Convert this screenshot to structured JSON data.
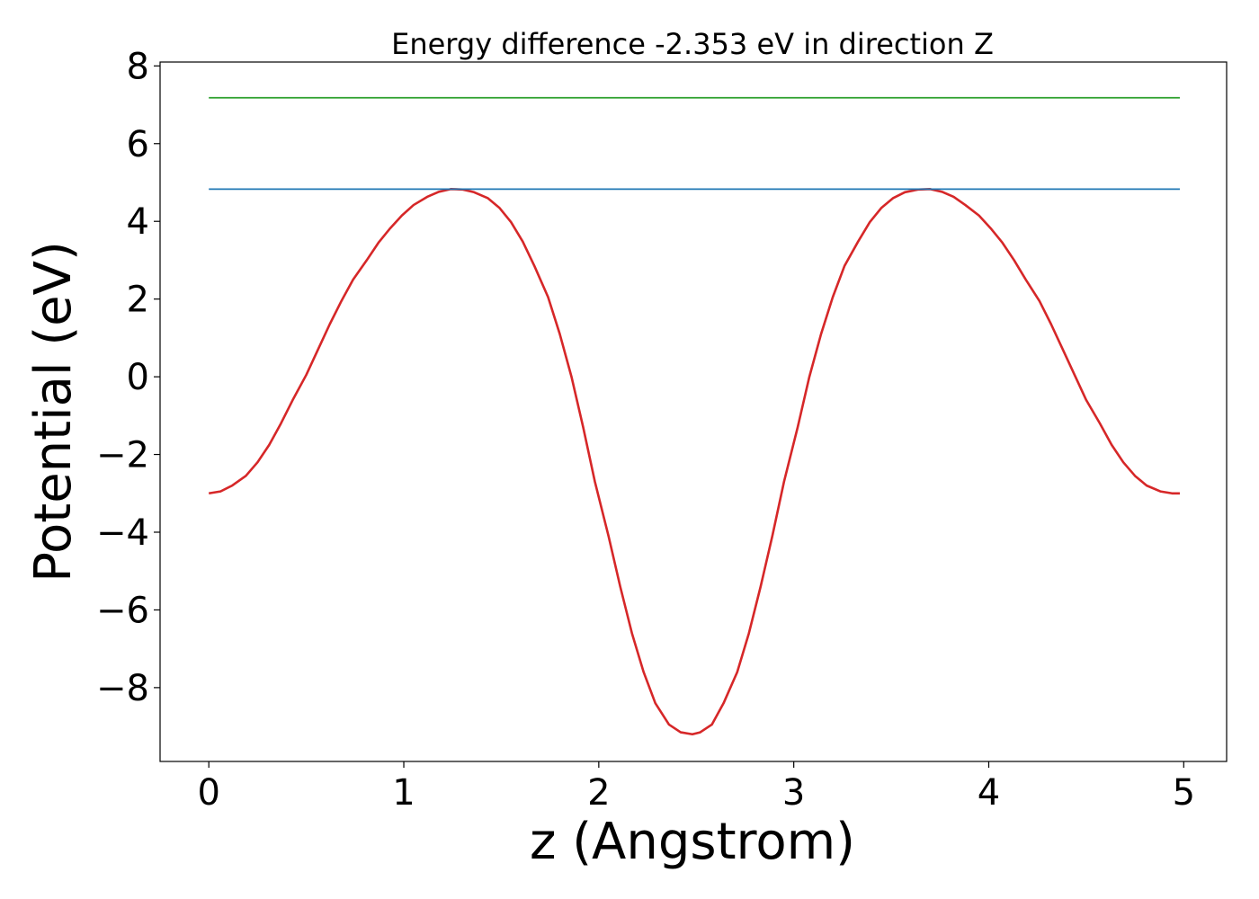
{
  "chart_data": {
    "type": "line",
    "title": "Energy difference -2.353 eV in direction Z",
    "xlabel": "z (Angstrom)",
    "ylabel": "Potential (eV)",
    "xlim": [
      -0.25,
      5.22
    ],
    "ylim": [
      -9.9,
      8.1
    ],
    "xticks": [
      0,
      1,
      2,
      3,
      4,
      5
    ],
    "yticks": [
      8,
      6,
      4,
      2,
      0,
      -2,
      -4,
      -6,
      -8
    ],
    "xtick_labels": [
      "0",
      "1",
      "2",
      "3",
      "4",
      "5"
    ],
    "ytick_labels": [
      "8",
      "6",
      "4",
      "2",
      "0",
      "−2",
      "−4",
      "−6",
      "−8"
    ],
    "grid": false,
    "legend": "none",
    "series": [
      {
        "color": "#d62728",
        "style": "curve",
        "x": [
          0.0,
          0.06,
          0.12,
          0.19,
          0.25,
          0.31,
          0.37,
          0.43,
          0.5,
          0.56,
          0.62,
          0.68,
          0.74,
          0.81,
          0.87,
          0.93,
          0.99,
          1.05,
          1.12,
          1.18,
          1.24,
          1.3,
          1.36,
          1.43,
          1.49,
          1.55,
          1.61,
          1.67,
          1.74,
          1.8,
          1.86,
          1.92,
          1.98,
          2.05,
          2.11,
          2.17,
          2.23,
          2.29,
          2.36,
          2.42,
          2.48,
          2.52,
          2.58,
          2.64,
          2.71,
          2.77,
          2.83,
          2.89,
          2.95,
          3.02,
          3.08,
          3.14,
          3.2,
          3.26,
          3.33,
          3.39,
          3.45,
          3.51,
          3.57,
          3.64,
          3.7,
          3.76,
          3.82,
          3.88,
          3.95,
          4.01,
          4.07,
          4.13,
          4.19,
          4.26,
          4.32,
          4.38,
          4.44,
          4.5,
          4.57,
          4.63,
          4.69,
          4.75,
          4.81,
          4.88,
          4.94,
          4.98
        ],
        "y": [
          -3.0,
          -2.95,
          -2.8,
          -2.55,
          -2.2,
          -1.75,
          -1.2,
          -0.6,
          0.05,
          0.7,
          1.35,
          1.95,
          2.5,
          3.0,
          3.45,
          3.82,
          4.15,
          4.42,
          4.63,
          4.76,
          4.83,
          4.82,
          4.75,
          4.6,
          4.35,
          3.98,
          3.48,
          2.85,
          2.05,
          1.1,
          0.0,
          -1.3,
          -2.7,
          -4.1,
          -5.4,
          -6.6,
          -7.6,
          -8.4,
          -8.95,
          -9.15,
          -9.2,
          -9.15,
          -8.95,
          -8.4,
          -7.6,
          -6.6,
          -5.4,
          -4.1,
          -2.7,
          -1.3,
          0.0,
          1.1,
          2.05,
          2.85,
          3.48,
          3.98,
          4.35,
          4.6,
          4.75,
          4.82,
          4.83,
          4.76,
          4.63,
          4.42,
          4.15,
          3.82,
          3.45,
          3.0,
          2.5,
          1.95,
          1.35,
          0.7,
          0.05,
          -0.6,
          -1.2,
          -1.75,
          -2.2,
          -2.55,
          -2.8,
          -2.95,
          -3.0,
          -3.0
        ]
      },
      {
        "color": "#1f77b4",
        "style": "horizontal",
        "x": [
          0,
          4.98
        ],
        "y": [
          4.83,
          4.83
        ]
      },
      {
        "color": "#2ca02c",
        "style": "horizontal",
        "x": [
          0,
          4.98
        ],
        "y": [
          7.18,
          7.18
        ]
      }
    ]
  }
}
